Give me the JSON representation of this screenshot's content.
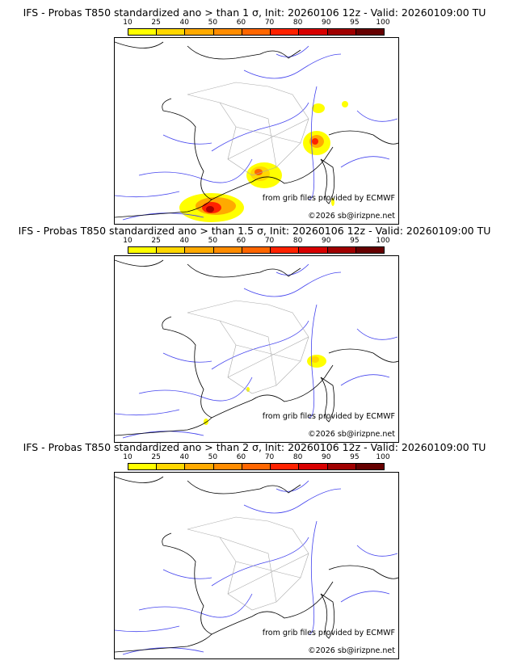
{
  "panels": [
    {
      "title": "IFS - Probas T850  standardized ano > than 1 σ, Init: 20260106 12z - Valid: 20260109:00 TU",
      "threshold": "1 σ"
    },
    {
      "title": "IFS - Probas T850  standardized ano > than 1.5 σ, Init: 20260106 12z - Valid: 20260109:00 TU",
      "threshold": "1.5 σ"
    },
    {
      "title": "IFS - Probas T850  standardized ano > than 2 σ, Init: 20260106 12z - Valid: 20260109:00 TU",
      "threshold": "2 σ"
    }
  ],
  "colorbar": {
    "ticks": [
      "10",
      "25",
      "40",
      "50",
      "60",
      "70",
      "80",
      "90",
      "95",
      "100"
    ],
    "colors": [
      "#ffff00",
      "#ffd700",
      "#ffaa00",
      "#ff8c00",
      "#ff6600",
      "#ff2200",
      "#d80000",
      "#a00000",
      "#660000"
    ]
  },
  "credits": {
    "source": "from grib files provided by ECMWF",
    "copyright": "©2026 sb@irizpne.net"
  }
}
